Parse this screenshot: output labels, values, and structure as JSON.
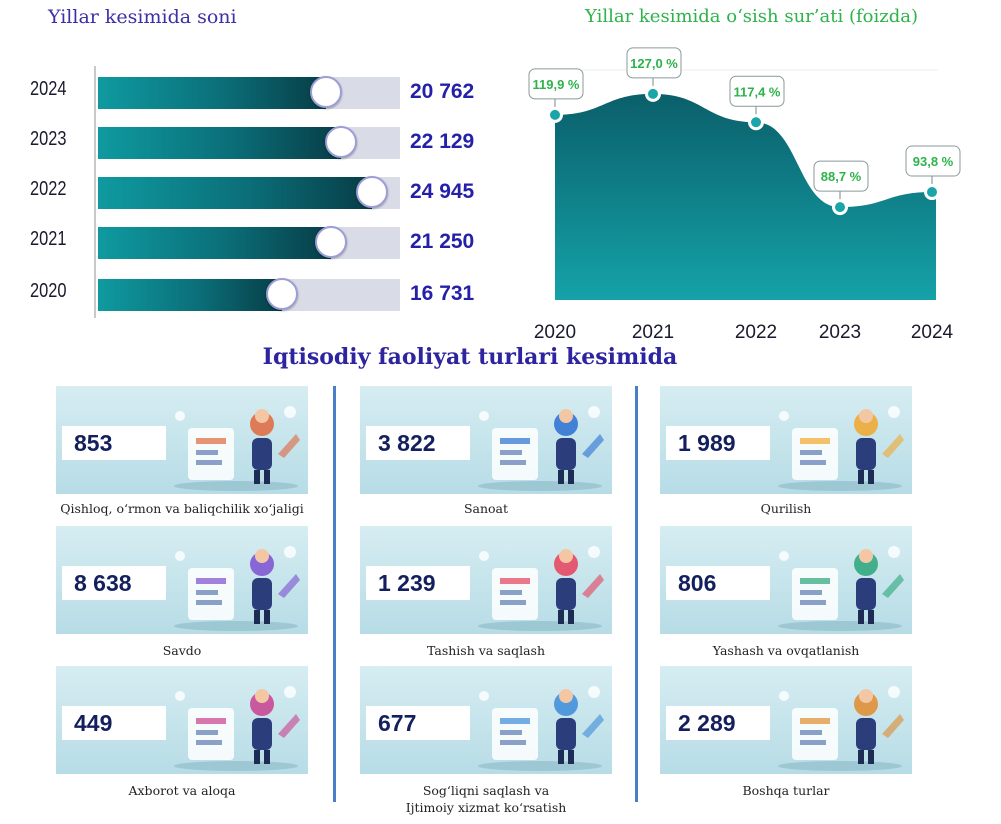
{
  "titles": {
    "left": "Yillar kesimida soni",
    "right": "Yillar kesimida o‘sish sur’ati (foizda)",
    "middle": "Iqtisodiy faoliyat turlari kesimida"
  },
  "chart_data": [
    {
      "type": "bar",
      "orientation": "horizontal",
      "title": "Yillar kesimida soni",
      "categories": [
        "2024",
        "2023",
        "2022",
        "2021",
        "2020"
      ],
      "values": [
        20762,
        22129,
        24945,
        21250,
        16731
      ],
      "value_labels": [
        "20 762",
        "22 129",
        "24 945",
        "21 250",
        "16 731"
      ],
      "xlim": [
        0,
        27500
      ],
      "colors": {
        "fill": "#0b6e78",
        "track": "#d9dbe7",
        "value": "#2520a8"
      }
    },
    {
      "type": "area",
      "title": "Yillar kesimida o‘sish sur’ati (foizda)",
      "x": [
        "2020",
        "2021",
        "2022",
        "2023",
        "2024"
      ],
      "values": [
        119.9,
        127.0,
        117.4,
        88.7,
        93.8
      ],
      "value_labels": [
        "119,9 %",
        "127,0 %",
        "117,4 %",
        "88,7 %",
        "93,8 %"
      ],
      "ylim": [
        0,
        135
      ],
      "grid": false,
      "colors": {
        "fill": "#0d7d86",
        "marker": "#1aa5a8",
        "label": "#2cb34a"
      }
    }
  ],
  "categories": [
    {
      "value": "853",
      "label": "Qishloq, o‘rmon va baliqchilik xo‘jaligi",
      "icon": "farm-illustration"
    },
    {
      "value": "3 822",
      "label": "Sanoat",
      "icon": "factory-illustration"
    },
    {
      "value": "1 989",
      "label": "Qurilish",
      "icon": "construction-illustration"
    },
    {
      "value": "8 638",
      "label": "Savdo",
      "icon": "shopping-illustration"
    },
    {
      "value": "1 239",
      "label": "Tashish va saqlash",
      "icon": "delivery-truck-illustration"
    },
    {
      "value": "806",
      "label": "Yashash va ovqatlanish",
      "icon": "hotel-food-illustration"
    },
    {
      "value": "449",
      "label": "Axborot va aloqa",
      "icon": "it-computer-illustration"
    },
    {
      "value": "677",
      "label": "Sog‘liqni saqlash va\nIjtimoiy xizmat ko‘rsatish",
      "icon": "healthcare-illustration"
    },
    {
      "value": "2 289",
      "label": "Boshqa turlar",
      "icon": "analytics-illustration"
    }
  ]
}
